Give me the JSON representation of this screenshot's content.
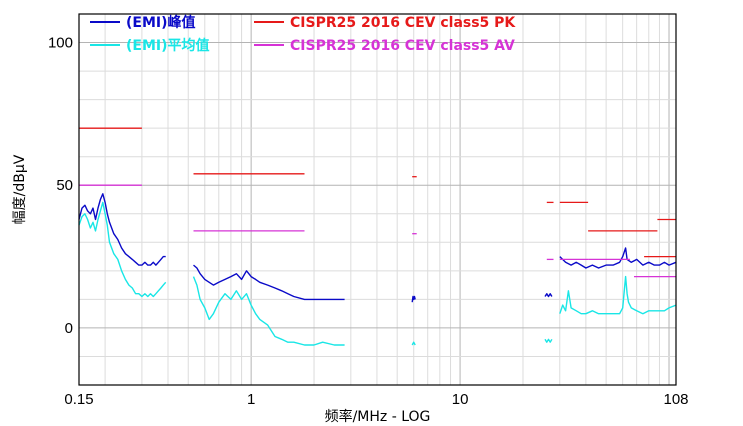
{
  "chart_data": {
    "type": "line",
    "xlabel": "频率/MHz - LOG",
    "ylabel": "幅度/dBμV",
    "x_scale": "log",
    "xlim": [
      0.15,
      108
    ],
    "ylim": [
      -20,
      110
    ],
    "x_ticks": [
      {
        "value": 0.15,
        "label": "0.15"
      },
      {
        "value": 1,
        "label": "1"
      },
      {
        "value": 10,
        "label": "10"
      },
      {
        "value": 108,
        "label": "108"
      }
    ],
    "y_ticks": [
      {
        "value": 0,
        "label": "0"
      },
      {
        "value": 50,
        "label": "50"
      },
      {
        "value": 100,
        "label": "100"
      }
    ],
    "grid": true,
    "legend_position": "top",
    "series": [
      {
        "name": "(EMI)峰值",
        "color": "#0a0ac8",
        "segments": [
          [
            [
              0.15,
              38
            ],
            [
              0.155,
              42
            ],
            [
              0.16,
              43
            ],
            [
              0.165,
              41
            ],
            [
              0.17,
              40
            ],
            [
              0.175,
              42
            ],
            [
              0.18,
              38
            ],
            [
              0.185,
              42
            ],
            [
              0.19,
              45
            ],
            [
              0.195,
              47
            ],
            [
              0.2,
              44
            ],
            [
              0.205,
              40
            ],
            [
              0.21,
              37
            ],
            [
              0.22,
              33
            ],
            [
              0.23,
              31
            ],
            [
              0.24,
              28
            ],
            [
              0.25,
              26
            ],
            [
              0.26,
              25
            ],
            [
              0.27,
              24
            ],
            [
              0.28,
              23
            ],
            [
              0.29,
              22
            ],
            [
              0.3,
              22
            ],
            [
              0.31,
              23
            ],
            [
              0.32,
              22
            ],
            [
              0.33,
              22
            ],
            [
              0.34,
              23
            ],
            [
              0.35,
              22
            ],
            [
              0.36,
              23
            ],
            [
              0.37,
              24
            ],
            [
              0.38,
              25
            ],
            [
              0.39,
              25
            ]
          ],
          [
            [
              0.53,
              22
            ],
            [
              0.55,
              21
            ],
            [
              0.57,
              19
            ],
            [
              0.6,
              17
            ],
            [
              0.63,
              16
            ],
            [
              0.66,
              15
            ],
            [
              0.7,
              16
            ],
            [
              0.75,
              17
            ],
            [
              0.8,
              18
            ],
            [
              0.85,
              19
            ],
            [
              0.9,
              17
            ],
            [
              0.95,
              20
            ],
            [
              1.0,
              18
            ],
            [
              1.05,
              17
            ],
            [
              1.1,
              16
            ],
            [
              1.2,
              15
            ],
            [
              1.3,
              14
            ],
            [
              1.4,
              13
            ],
            [
              1.5,
              12
            ],
            [
              1.6,
              11
            ],
            [
              1.8,
              10
            ],
            [
              2.0,
              10
            ],
            [
              2.2,
              10
            ],
            [
              2.5,
              10
            ],
            [
              2.8,
              10
            ]
          ],
          [
            [
              5.9,
              9
            ],
            [
              5.95,
              11
            ],
            [
              6.0,
              10
            ],
            [
              6.05,
              11
            ],
            [
              6.1,
              10
            ]
          ],
          [
            [
              25.5,
              11
            ],
            [
              26,
              12
            ],
            [
              26.5,
              11
            ],
            [
              27,
              12
            ],
            [
              27.5,
              11
            ]
          ],
          [
            [
              30,
              25
            ],
            [
              32,
              23
            ],
            [
              34,
              22
            ],
            [
              36,
              23
            ],
            [
              38,
              22
            ],
            [
              40,
              21
            ],
            [
              43,
              22
            ],
            [
              46,
              21
            ],
            [
              50,
              22
            ],
            [
              54,
              22
            ],
            [
              58,
              23
            ],
            [
              60,
              25
            ],
            [
              62,
              28
            ],
            [
              63,
              24
            ],
            [
              66,
              23
            ],
            [
              70,
              24
            ],
            [
              75,
              22
            ],
            [
              80,
              23
            ],
            [
              85,
              22
            ],
            [
              90,
              22
            ],
            [
              95,
              23
            ],
            [
              100,
              22
            ],
            [
              108,
              23
            ]
          ]
        ]
      },
      {
        "name": "(EMI)平均值",
        "color": "#19e6e6",
        "segments": [
          [
            [
              0.15,
              36
            ],
            [
              0.155,
              39
            ],
            [
              0.16,
              40
            ],
            [
              0.165,
              38
            ],
            [
              0.17,
              35
            ],
            [
              0.175,
              37
            ],
            [
              0.18,
              34
            ],
            [
              0.185,
              38
            ],
            [
              0.19,
              41
            ],
            [
              0.195,
              44
            ],
            [
              0.2,
              40
            ],
            [
              0.205,
              36
            ],
            [
              0.21,
              30
            ],
            [
              0.22,
              26
            ],
            [
              0.23,
              24
            ],
            [
              0.24,
              20
            ],
            [
              0.25,
              17
            ],
            [
              0.26,
              15
            ],
            [
              0.27,
              14
            ],
            [
              0.28,
              12
            ],
            [
              0.29,
              12
            ],
            [
              0.3,
              11
            ],
            [
              0.31,
              12
            ],
            [
              0.32,
              11
            ],
            [
              0.33,
              12
            ],
            [
              0.34,
              11
            ],
            [
              0.35,
              12
            ],
            [
              0.36,
              13
            ],
            [
              0.37,
              14
            ],
            [
              0.38,
              15
            ],
            [
              0.39,
              16
            ]
          ],
          [
            [
              0.53,
              18
            ],
            [
              0.55,
              15
            ],
            [
              0.57,
              10
            ],
            [
              0.6,
              7
            ],
            [
              0.63,
              3
            ],
            [
              0.66,
              5
            ],
            [
              0.7,
              9
            ],
            [
              0.75,
              12
            ],
            [
              0.8,
              10
            ],
            [
              0.85,
              13
            ],
            [
              0.9,
              10
            ],
            [
              0.95,
              12
            ],
            [
              1.0,
              8
            ],
            [
              1.05,
              5
            ],
            [
              1.1,
              3
            ],
            [
              1.2,
              1
            ],
            [
              1.3,
              -3
            ],
            [
              1.4,
              -4
            ],
            [
              1.5,
              -5
            ],
            [
              1.6,
              -5
            ],
            [
              1.8,
              -6
            ],
            [
              2.0,
              -6
            ],
            [
              2.2,
              -5
            ],
            [
              2.5,
              -6
            ],
            [
              2.8,
              -6
            ]
          ],
          [
            [
              5.9,
              -6
            ],
            [
              6.0,
              -5
            ],
            [
              6.1,
              -6
            ]
          ],
          [
            [
              25.5,
              -4
            ],
            [
              26,
              -5
            ],
            [
              26.5,
              -4
            ],
            [
              27,
              -5
            ],
            [
              27.5,
              -4
            ]
          ],
          [
            [
              30,
              5
            ],
            [
              31,
              8
            ],
            [
              32,
              6
            ],
            [
              33,
              13
            ],
            [
              34,
              7
            ],
            [
              36,
              6
            ],
            [
              38,
              5
            ],
            [
              40,
              5
            ],
            [
              43,
              6
            ],
            [
              46,
              5
            ],
            [
              50,
              5
            ],
            [
              54,
              5
            ],
            [
              58,
              5
            ],
            [
              60,
              7
            ],
            [
              62,
              18
            ],
            [
              63,
              12
            ],
            [
              64,
              9
            ],
            [
              66,
              7
            ],
            [
              70,
              6
            ],
            [
              75,
              5
            ],
            [
              80,
              6
            ],
            [
              85,
              6
            ],
            [
              90,
              6
            ],
            [
              95,
              6
            ],
            [
              100,
              7
            ],
            [
              108,
              8
            ]
          ]
        ]
      },
      {
        "name": "CISPR25 2016 CEV class5 PK",
        "color": "#e61919",
        "segments": [
          [
            [
              0.15,
              70
            ],
            [
              0.3,
              70
            ]
          ],
          [
            [
              0.53,
              54
            ],
            [
              1.8,
              54
            ]
          ],
          [
            [
              5.9,
              53
            ],
            [
              6.2,
              53
            ]
          ],
          [
            [
              26,
              44
            ],
            [
              28,
              44
            ]
          ],
          [
            [
              30,
              44
            ],
            [
              41,
              44
            ]
          ],
          [
            [
              41,
              34
            ],
            [
              88,
              34
            ]
          ],
          [
            [
              76,
              25
            ],
            [
              108,
              25
            ]
          ],
          [
            [
              88,
              38
            ],
            [
              108,
              38
            ]
          ]
        ]
      },
      {
        "name": "CISPR25 2016 CEV class5 AV",
        "color": "#d633d6",
        "segments": [
          [
            [
              0.15,
              50
            ],
            [
              0.3,
              50
            ]
          ],
          [
            [
              0.53,
              34
            ],
            [
              1.8,
              34
            ]
          ],
          [
            [
              5.9,
              33
            ],
            [
              6.2,
              33
            ]
          ],
          [
            [
              26,
              24
            ],
            [
              28,
              24
            ]
          ],
          [
            [
              30,
              24
            ],
            [
              41,
              24
            ]
          ],
          [
            [
              41,
              24
            ],
            [
              65,
              24
            ]
          ],
          [
            [
              68,
              18
            ],
            [
              108,
              18
            ]
          ]
        ]
      }
    ]
  }
}
